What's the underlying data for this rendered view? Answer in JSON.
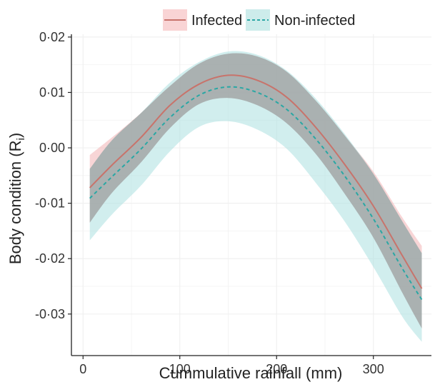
{
  "chart_data": {
    "type": "line",
    "title": "",
    "xlabel": "Cummulative rainfall (mm)",
    "ylabel_main": "Body condition (R",
    "ylabel_sub": "i",
    "ylabel_close": ")",
    "xlim": [
      -12,
      360
    ],
    "ylim": [
      -0.0375,
      0.0205
    ],
    "x_ticks": [
      {
        "value": 0,
        "label": "0"
      },
      {
        "value": 100,
        "label": "100"
      },
      {
        "value": 200,
        "label": "200"
      },
      {
        "value": 300,
        "label": "300"
      }
    ],
    "y_ticks": [
      {
        "value": 0.02,
        "label": "0·02"
      },
      {
        "value": 0.01,
        "label": "0·01"
      },
      {
        "value": 0.0,
        "label": "0·00"
      },
      {
        "value": -0.01,
        "label": "-0·01"
      },
      {
        "value": -0.02,
        "label": "-0·02"
      },
      {
        "value": -0.03,
        "label": "-0·03"
      }
    ],
    "grid": true,
    "legend_position": "top",
    "x": [
      7,
      30,
      60,
      90,
      120,
      150,
      180,
      210,
      240,
      270,
      300,
      330,
      350
    ],
    "series": [
      {
        "name": "Infected",
        "line_style": "solid",
        "line_color": "#c8736b",
        "ribbon_color": "#f4b9bb",
        "y": [
          -0.0072,
          -0.0031,
          0.0019,
          0.0077,
          0.0115,
          0.0131,
          0.0122,
          0.0092,
          0.0038,
          -0.0029,
          -0.0105,
          -0.0195,
          -0.0254
        ],
        "lower": [
          -0.0135,
          -0.0081,
          -0.0026,
          0.0036,
          0.0079,
          0.009,
          0.0077,
          0.0045,
          -0.001,
          -0.0082,
          -0.0162,
          -0.0262,
          -0.0326
        ],
        "upper": [
          -0.0013,
          0.0019,
          0.0063,
          0.0112,
          0.0152,
          0.017,
          0.0165,
          0.0138,
          0.0086,
          0.0023,
          -0.0043,
          -0.0126,
          -0.0177
        ]
      },
      {
        "name": "Non-infected",
        "line_style": "dashed",
        "line_color": "#2aa7a4",
        "ribbon_color": "#b2e2e2",
        "y": [
          -0.0091,
          -0.0052,
          -0.0002,
          0.0055,
          0.0095,
          0.011,
          0.01,
          0.007,
          0.0017,
          -0.005,
          -0.0128,
          -0.0218,
          -0.0274
        ],
        "lower": [
          -0.0167,
          -0.012,
          -0.0068,
          -0.0006,
          0.0038,
          0.0048,
          0.0033,
          -0.0001,
          -0.0062,
          -0.0132,
          -0.0215,
          -0.0305,
          -0.035
        ],
        "upper": [
          -0.0038,
          0.0014,
          0.0063,
          0.0118,
          0.0155,
          0.0174,
          0.0168,
          0.014,
          0.009,
          0.0026,
          -0.0047,
          -0.0133,
          -0.019
        ]
      }
    ]
  }
}
